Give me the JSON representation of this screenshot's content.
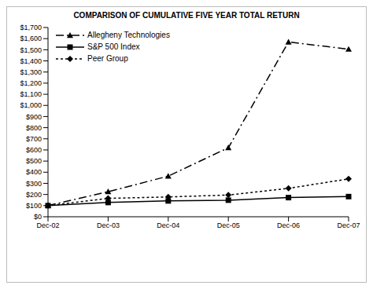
{
  "chart_data": {
    "type": "line",
    "title": "COMPARISON OF CUMULATIVE FIVE YEAR TOTAL RETURN",
    "categories": [
      "Dec-02",
      "Dec-03",
      "Dec-04",
      "Dec-05",
      "Dec-06",
      "Dec-07"
    ],
    "series": [
      {
        "name": "Allegheny Technologies",
        "color": "#000000",
        "marker": "triangle",
        "line_style": "dashdot",
        "values": [
          100,
          225,
          365,
          620,
          1570,
          1505
        ]
      },
      {
        "name": "S&P 500 Index",
        "color": "#000000",
        "marker": "square",
        "line_style": "solid",
        "values": [
          100,
          128,
          142,
          149,
          172,
          181
        ]
      },
      {
        "name": "Peer Group",
        "color": "#000000",
        "marker": "diamond",
        "line_style": "dotted",
        "values": [
          100,
          165,
          178,
          195,
          255,
          340
        ]
      }
    ],
    "ylim": [
      0,
      1700
    ],
    "yticks": [
      {
        "value": 0,
        "label": "$0"
      },
      {
        "value": 100,
        "label": "$100"
      },
      {
        "value": 200,
        "label": "$200"
      },
      {
        "value": 300,
        "label": "$300"
      },
      {
        "value": 400,
        "label": "$400"
      },
      {
        "value": 500,
        "label": "$500"
      },
      {
        "value": 600,
        "label": "$600"
      },
      {
        "value": 700,
        "label": "$700"
      },
      {
        "value": 800,
        "label": "$800"
      },
      {
        "value": 900,
        "label": "$900"
      },
      {
        "value": 1000,
        "label": "$1,000"
      },
      {
        "value": 1100,
        "label": "$1,100"
      },
      {
        "value": 1200,
        "label": "$1,200"
      },
      {
        "value": 1300,
        "label": "$1,300"
      },
      {
        "value": 1400,
        "label": "$1,400"
      },
      {
        "value": 1500,
        "label": "$1,500"
      },
      {
        "value": 1600,
        "label": "$1,600"
      },
      {
        "value": 1700,
        "label": "$1,700"
      }
    ],
    "grid": false,
    "legend": "upper left"
  }
}
